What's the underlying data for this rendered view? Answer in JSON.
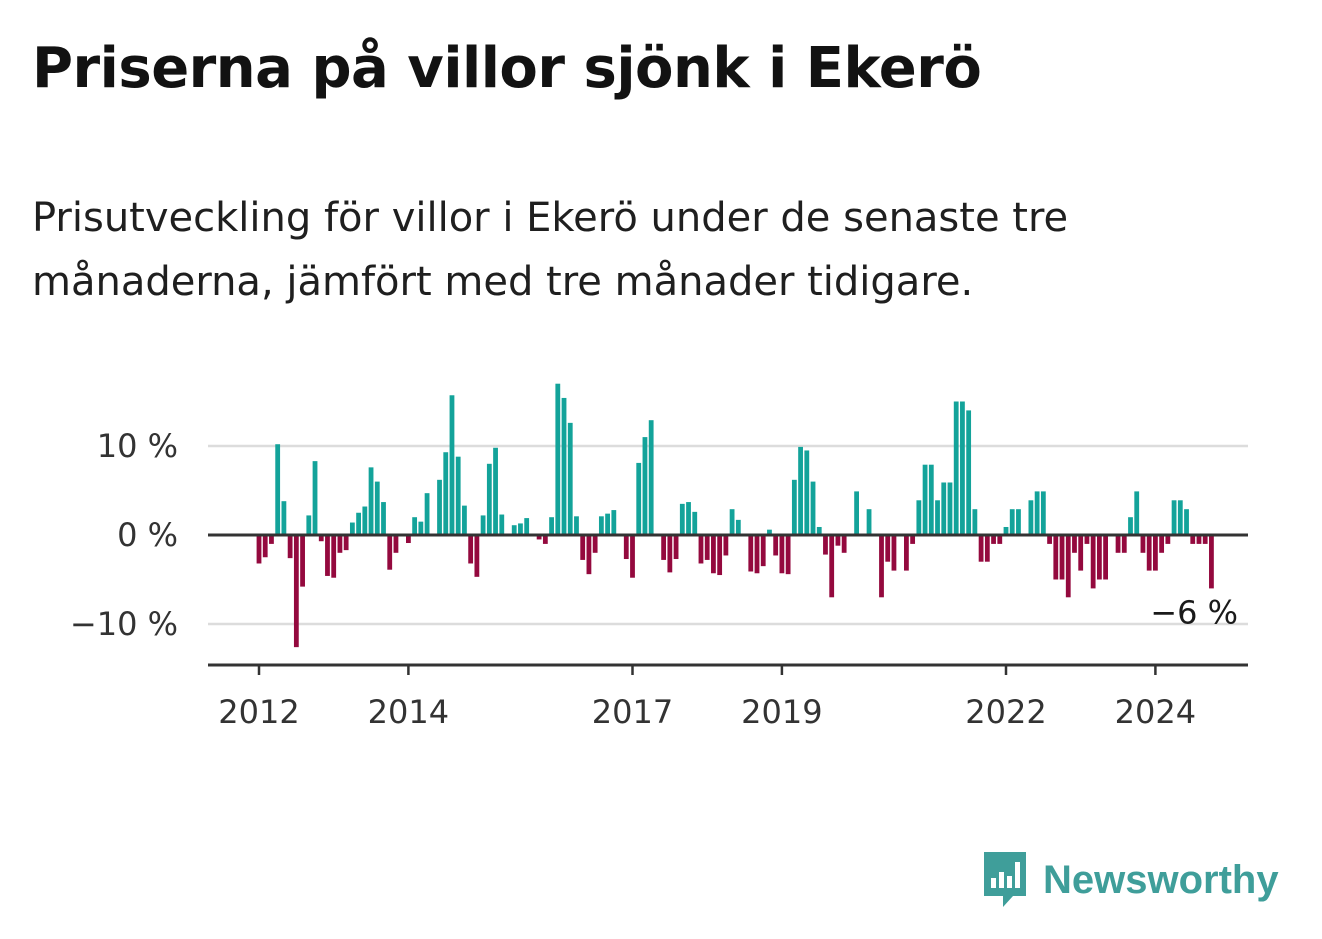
{
  "title": "Priserna på villor sjönk i Ekerö",
  "subtitle": "Prisutveckling för villor i Ekerö under de senaste tre månaderna, jämfört med tre månader tidigare.",
  "colors": {
    "positive": "#13a39a",
    "negative": "#94093e",
    "grid": "#dcdcdc",
    "axis": "#333333",
    "brand": "#3f9e9a"
  },
  "logo": {
    "name": "Newsworthy",
    "icon": "newsworthy-bar-chart-icon"
  },
  "chart_data": {
    "type": "bar",
    "title": "Priserna på villor sjönk i Ekerö",
    "xlabel": "",
    "ylabel": "",
    "ylim": [
      -14,
      19
    ],
    "y_ticks": [
      {
        "value": 10,
        "label": "10 %"
      },
      {
        "value": 0,
        "label": "0 %"
      },
      {
        "value": -10,
        "label": "−10 %"
      }
    ],
    "x_ticks": [
      {
        "index": 0,
        "label": "2012"
      },
      {
        "index": 24,
        "label": "2014"
      },
      {
        "index": 60,
        "label": "2017"
      },
      {
        "index": 84,
        "label": "2019"
      },
      {
        "index": 120,
        "label": "2022"
      },
      {
        "index": 144,
        "label": "2024"
      }
    ],
    "first_period": "2012-01",
    "frequency": "monthly",
    "values": [
      -3.2,
      -2.5,
      -1.0,
      10.2,
      3.8,
      -2.6,
      -12.6,
      -5.8,
      2.2,
      8.3,
      -0.7,
      -4.6,
      -4.8,
      -2.0,
      -1.7,
      1.4,
      2.5,
      3.2,
      7.6,
      6.0,
      3.7,
      -3.9,
      -2.0,
      0,
      -0.9,
      2.0,
      1.5,
      4.7,
      0,
      6.2,
      9.3,
      15.7,
      8.8,
      3.3,
      -3.2,
      -4.7,
      2.2,
      8.0,
      9.8,
      2.3,
      0,
      1.1,
      1.3,
      1.9,
      0,
      -0.5,
      -1.0,
      2.0,
      17.0,
      15.4,
      12.6,
      2.1,
      -2.8,
      -4.4,
      -2.0,
      2.1,
      2.4,
      2.8,
      0,
      -2.7,
      -4.8,
      8.1,
      11.0,
      12.9,
      0,
      -2.8,
      -4.2,
      -2.7,
      3.5,
      3.7,
      2.6,
      -3.2,
      -2.8,
      -4.3,
      -4.5,
      -2.3,
      2.9,
      1.7,
      0,
      -4.1,
      -4.3,
      -3.5,
      0.6,
      -2.3,
      -4.3,
      -4.4,
      6.2,
      9.9,
      9.5,
      6.0,
      0.9,
      -2.2,
      -7.0,
      -1.2,
      -2.0,
      0,
      4.9,
      0,
      2.9,
      0,
      -7.0,
      -3.0,
      -4.0,
      0,
      -4.0,
      -1.0,
      3.9,
      7.9,
      7.9,
      3.9,
      5.9,
      5.9,
      15.0,
      15.0,
      14.0,
      2.9,
      -3.0,
      -3.0,
      -1.0,
      -1.0,
      0.9,
      2.9,
      2.9,
      0,
      3.9,
      4.9,
      4.9,
      -1.0,
      -5.0,
      -5.0,
      -7.0,
      -2.0,
      -4.0,
      -1.0,
      -6.0,
      -5.0,
      -5.0,
      0,
      -2.0,
      -2.0,
      2.0,
      4.9,
      -2.0,
      -4.0,
      -4.0,
      -2.0,
      -1.0,
      3.9,
      3.9,
      2.9,
      -1.0,
      -1.0,
      -1.0,
      -6.0
    ],
    "last_value_label": "−6 %",
    "legend": "none",
    "grid": true
  }
}
